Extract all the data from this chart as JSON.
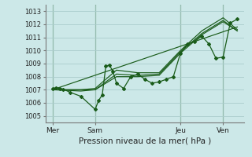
{
  "title": "Pression niveau de la mer( hPa )",
  "ylabel_values": [
    1005,
    1006,
    1007,
    1008,
    1009,
    1010,
    1011,
    1012,
    1013
  ],
  "ylim": [
    1004.5,
    1013.5
  ],
  "xlim": [
    0,
    56
  ],
  "xtick_positions": [
    2,
    14,
    38,
    50
  ],
  "xtick_labels": [
    "Mer",
    "Sam",
    "Jeu",
    "Ven"
  ],
  "vline_positions": [
    2,
    14,
    38,
    50
  ],
  "background_color": "#cce8e8",
  "grid_color": "#aacccc",
  "line_color": "#1a5c1a",
  "main_x": [
    2,
    3,
    4,
    5,
    7,
    10,
    14,
    15,
    16,
    17,
    18,
    19,
    20,
    22,
    24,
    26,
    28,
    30,
    32,
    34,
    36,
    38,
    40,
    42,
    44,
    46,
    48,
    50,
    52,
    54
  ],
  "main_y": [
    1007.1,
    1007.15,
    1007.1,
    1007.05,
    1006.8,
    1006.5,
    1005.5,
    1006.2,
    1006.6,
    1008.8,
    1008.9,
    1008.4,
    1007.5,
    1007.1,
    1008.0,
    1008.2,
    1007.8,
    1007.5,
    1007.6,
    1007.8,
    1008.0,
    1009.8,
    1010.5,
    1010.7,
    1011.1,
    1010.5,
    1009.4,
    1009.5,
    1012.1,
    1012.4
  ],
  "line2_x": [
    2,
    10,
    14,
    20,
    26,
    32,
    38,
    44,
    50,
    54
  ],
  "line2_y": [
    1007.0,
    1007.0,
    1007.1,
    1008.5,
    1008.3,
    1008.3,
    1010.0,
    1011.5,
    1012.5,
    1011.6
  ],
  "line3_x": [
    2,
    54
  ],
  "line3_y": [
    1007.0,
    1011.8
  ],
  "line4_x": [
    2,
    10,
    14,
    20,
    26,
    32,
    38,
    44,
    50,
    54
  ],
  "line4_y": [
    1007.0,
    1007.0,
    1007.0,
    1008.2,
    1008.1,
    1008.2,
    1009.9,
    1011.3,
    1012.3,
    1011.5
  ],
  "line5_x": [
    2,
    10,
    14,
    20,
    26,
    32,
    38,
    44,
    50,
    54
  ],
  "line5_y": [
    1007.0,
    1006.9,
    1007.0,
    1008.0,
    1008.0,
    1008.1,
    1009.8,
    1011.2,
    1012.2,
    1011.5
  ]
}
